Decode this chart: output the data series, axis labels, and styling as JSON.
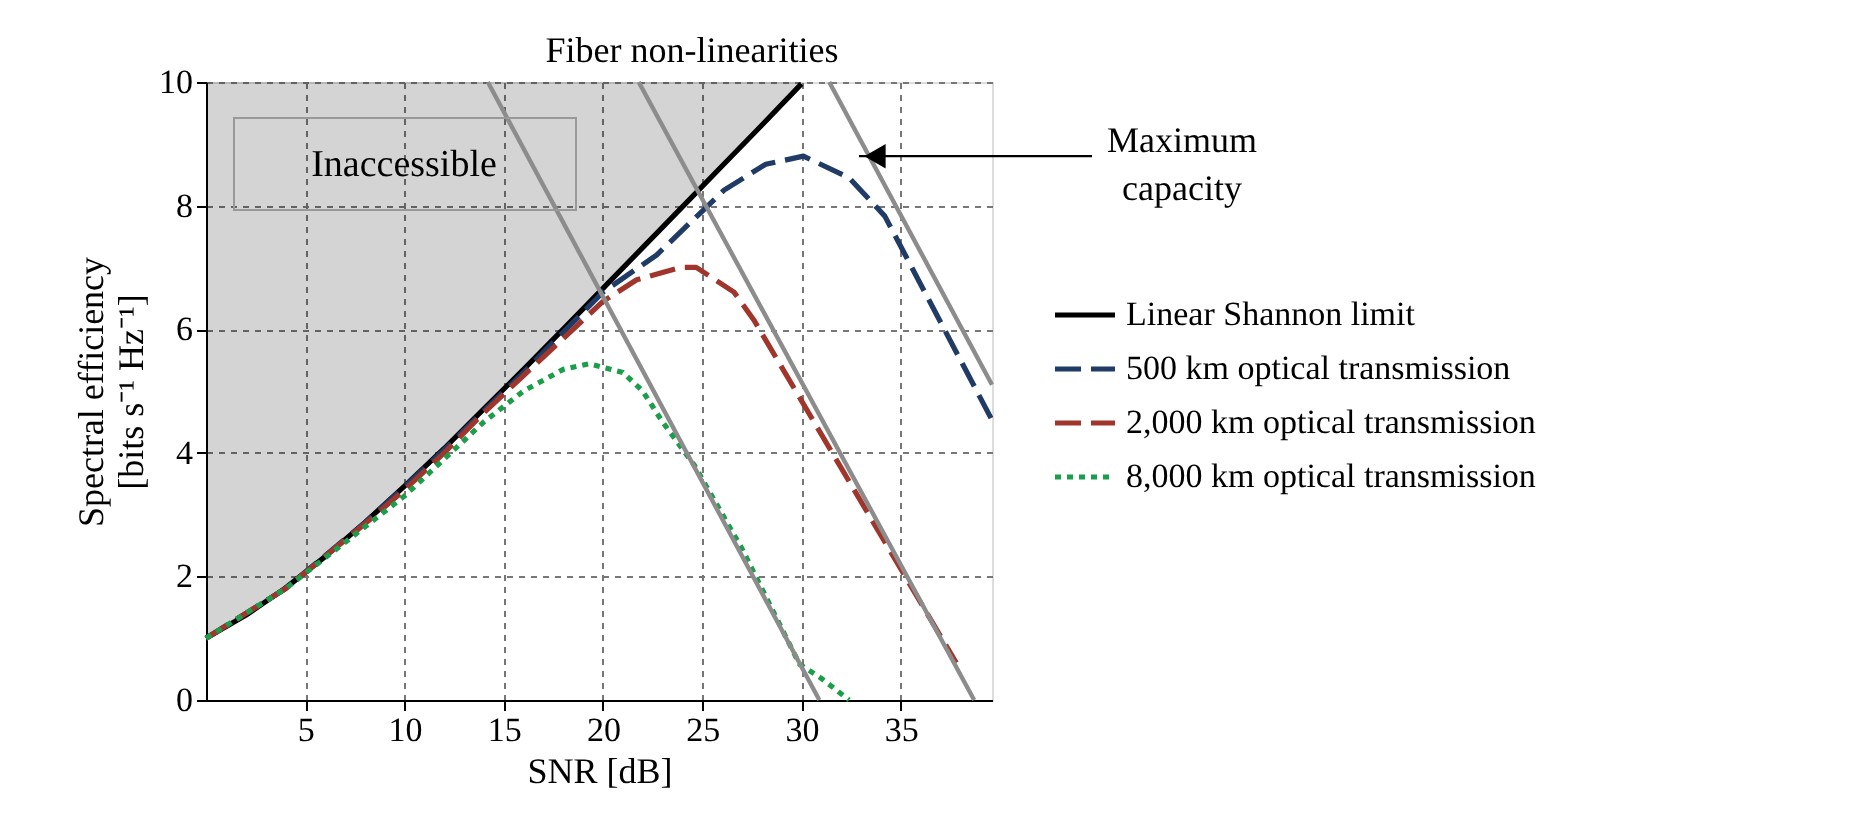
{
  "chart_data": {
    "type": "line",
    "xlabel": "SNR [dB]",
    "ylabel": "Spectral efficiency [bits s⁻¹ Hz⁻¹]",
    "xlim": [
      0,
      39.6
    ],
    "ylim": [
      0,
      10
    ],
    "xticks": [
      5,
      10,
      15,
      20,
      25,
      30,
      35
    ],
    "yticks": [
      0,
      2,
      4,
      6,
      8,
      10
    ],
    "grid": true,
    "legend": "right",
    "annotations": [
      "Fiber non-linearities",
      {
        "text": "Maximum capacity",
        "x": 32.9,
        "y": 8.8
      },
      "Inaccessible"
    ],
    "series": [
      {
        "x": [
          0,
          2,
          4,
          6,
          8,
          10,
          12,
          14,
          16,
          18,
          20,
          22,
          24,
          26,
          28,
          30
        ],
        "values": [
          1,
          1.37,
          1.81,
          2.32,
          2.87,
          3.46,
          4.07,
          4.71,
          5.35,
          6.0,
          6.66,
          7.32,
          7.98,
          8.64,
          9.3,
          9.97
        ],
        "upper": [
          10,
          10,
          10,
          10,
          10,
          10,
          10,
          10,
          10,
          10,
          10,
          10,
          10,
          10,
          10,
          10
        ],
        "lower": [
          1,
          1.37,
          1.81,
          2.32,
          2.87,
          3.46,
          4.07,
          4.71,
          5.35,
          6.0,
          6.66,
          7.32,
          7.98,
          8.64,
          9.3,
          9.97
        ],
        "name": "Linear Shannon limit",
        "color": "#000000",
        "line_style": "solid"
      },
      {
        "x": [
          0,
          4,
          8,
          10,
          12,
          14,
          16,
          18,
          20,
          22.7,
          26.1,
          28.2,
          30.1,
          32.4,
          34.2,
          39.6
        ],
        "values": [
          1,
          1.8,
          2.87,
          3.45,
          4.05,
          4.68,
          5.3,
          5.95,
          6.6,
          7.2,
          8.25,
          8.67,
          8.8,
          8.45,
          7.83,
          4.53
        ],
        "name": "500 km optical transmission",
        "color": "#1f3b66",
        "line_style": "dashed"
      },
      {
        "x": [
          0,
          4,
          8,
          10,
          12,
          14,
          16,
          18,
          20,
          21.7,
          23.9,
          24.7,
          26.6,
          27.6,
          37.8
        ],
        "values": [
          1,
          1.8,
          2.85,
          3.4,
          4.0,
          4.65,
          5.25,
          5.85,
          6.45,
          6.8,
          7.0,
          7.0,
          6.6,
          6.15,
          0.6
        ],
        "name": "2,000 km optical transmission",
        "color": "#a0362b",
        "line_style": "dashed"
      },
      {
        "x": [
          0,
          4,
          8,
          10,
          12,
          14,
          16,
          18,
          19.3,
          21,
          22,
          23,
          24.6,
          27,
          29.9,
          31,
          32.4
        ],
        "values": [
          1,
          1.8,
          2.8,
          3.3,
          3.9,
          4.5,
          5.0,
          5.35,
          5.44,
          5.3,
          5.0,
          4.5,
          3.8,
          2.45,
          0.58,
          0.35,
          0
        ],
        "name": "8,000 km optical transmission",
        "color": "#1a9e4a",
        "line_style": "dotted"
      },
      {
        "x": [
          14.2,
          30.9
        ],
        "values": [
          10,
          0
        ],
        "color": "#8c8c8c",
        "line_style": "solid"
      },
      {
        "x": [
          21.8,
          38.7
        ],
        "values": [
          10,
          0
        ],
        "color": "#8c8c8c",
        "line_style": "solid"
      },
      {
        "x": [
          31.4,
          39.6
        ],
        "values": [
          10,
          5.1
        ],
        "color": "#8c8c8c",
        "line_style": "solid"
      }
    ]
  }
}
